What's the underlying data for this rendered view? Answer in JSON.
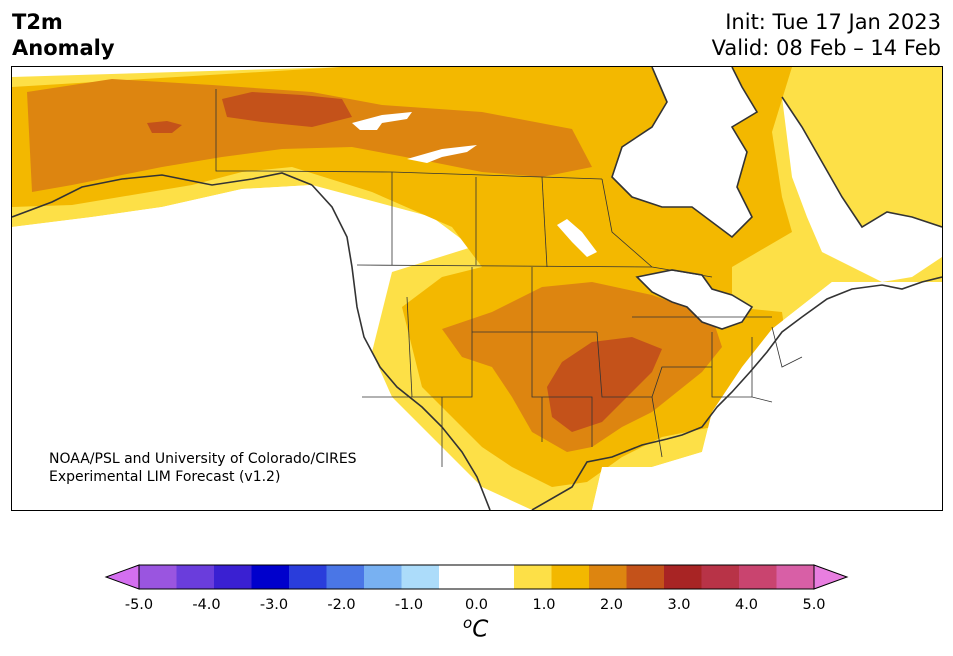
{
  "header": {
    "variable_line1": "T2m",
    "variable_line2": "Anomaly",
    "init": "Init: Tue 17 Jan 2023",
    "valid": "Valid: 08 Feb – 14 Feb"
  },
  "credit": {
    "line1": "NOAA/PSL and University of Colorado/CIRES",
    "line2": "Experimental LIM Forecast (v1.2)"
  },
  "colorbar": {
    "unit_base": "C",
    "unit_sup": "o",
    "ticks": [
      "-5.0",
      "-4.0",
      "-3.0",
      "-2.0",
      "-1.0",
      "0.0",
      "1.0",
      "2.0",
      "3.0",
      "4.0",
      "5.0"
    ],
    "tick_values": [
      -5,
      -4,
      -3,
      -2,
      -1,
      0,
      1,
      2,
      3,
      4,
      5
    ],
    "range": [
      -5.5,
      5.5
    ],
    "colors": [
      "#d46ff0",
      "#9a55e0",
      "#6a3ddc",
      "#3a20d2",
      "#0000cc",
      "#2a3ddb",
      "#4a76e6",
      "#78b1f2",
      "#acdcfa",
      "#ffffff",
      "#ffffff",
      "#fde047",
      "#f3b800",
      "#dd8510",
      "#c4521a",
      "#a82424",
      "#b83347",
      "#c9446f",
      "#d85fa6",
      "#e87ee0"
    ]
  },
  "colors": {
    "lt05": "#fde047",
    "lt10": "#f3b800",
    "lt15": "#dd8510",
    "lt20": "#c4521a",
    "land_border": "#333333",
    "water": "#ffffff"
  }
}
